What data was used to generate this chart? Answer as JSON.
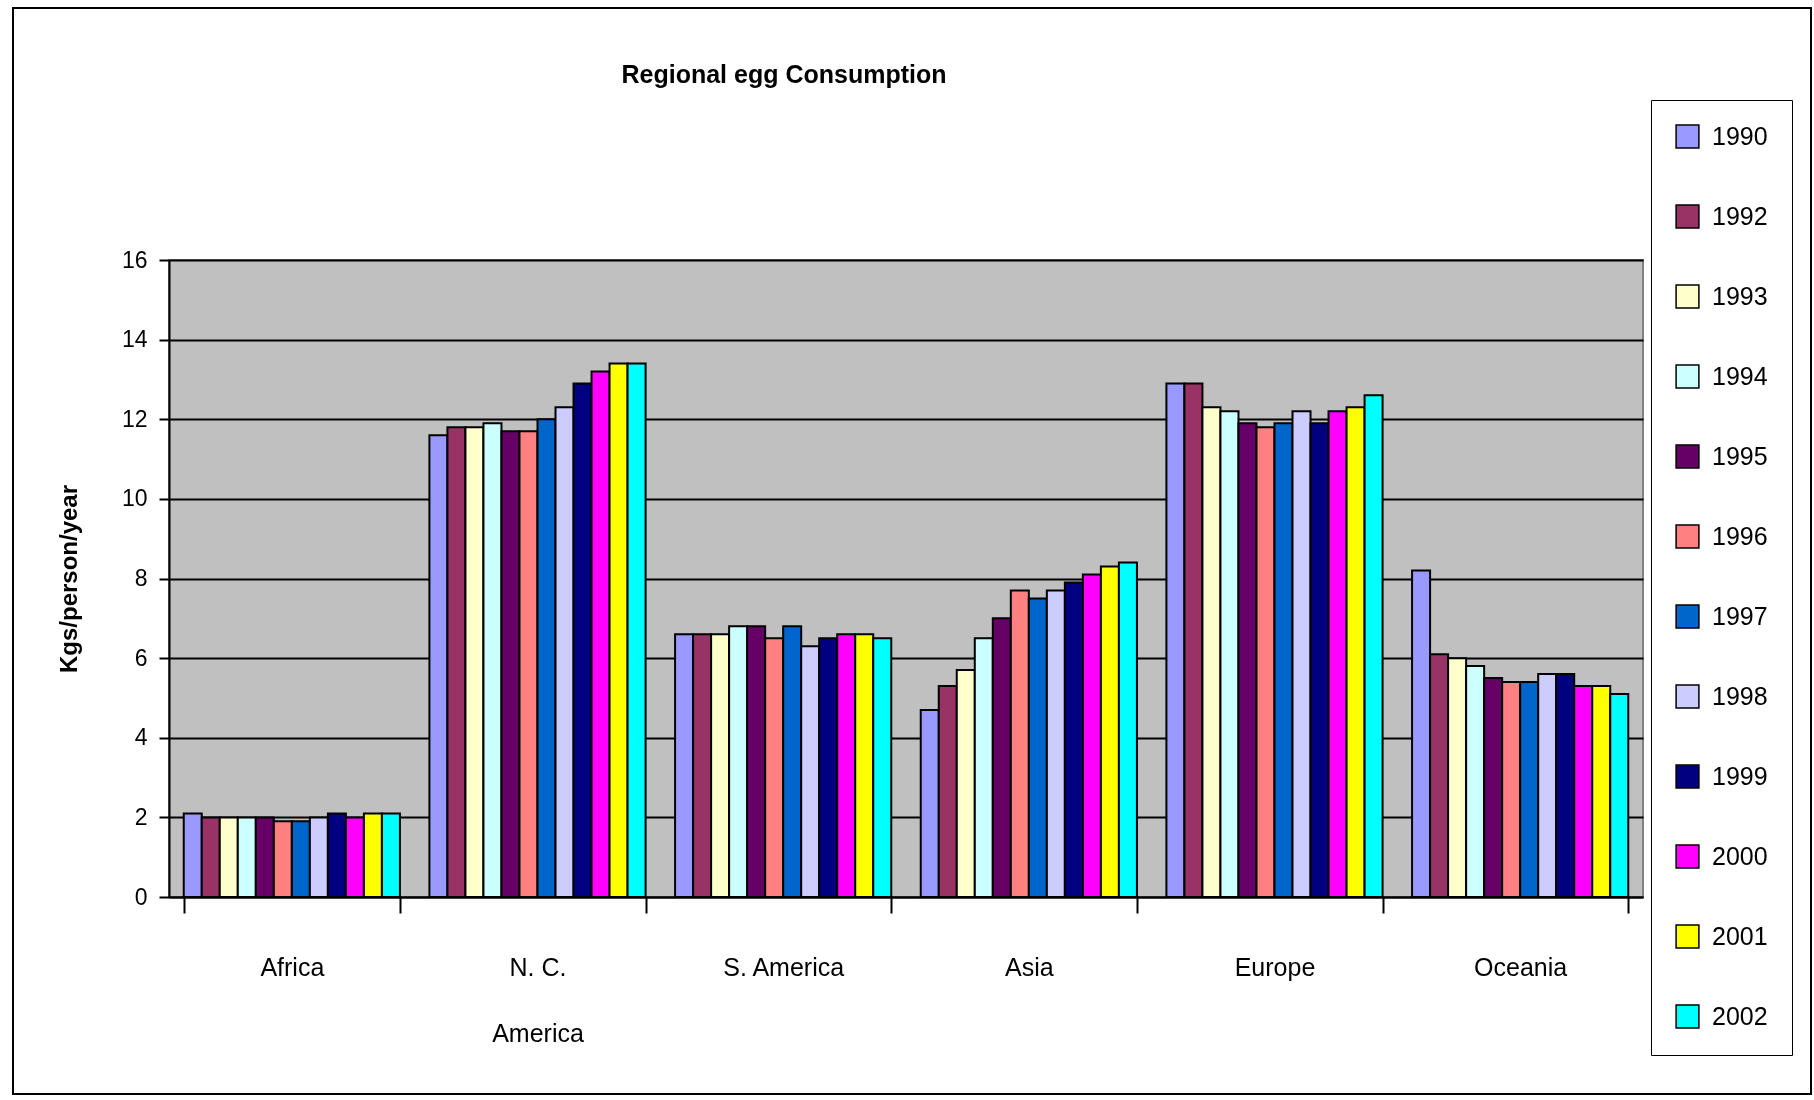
{
  "chart_data": {
    "type": "bar",
    "title": "Regional egg Consumption",
    "ylabel": "Kgs/person/year",
    "categories": [
      "Africa",
      "N. C. America",
      "S. America",
      "Asia",
      "Europe",
      "Oceania"
    ],
    "series": [
      {
        "name": "1990",
        "color": "#9999ff",
        "values": [
          2.1,
          11.6,
          6.6,
          4.7,
          12.9,
          8.2
        ]
      },
      {
        "name": "1992",
        "color": "#993366",
        "values": [
          2.0,
          11.8,
          6.6,
          5.3,
          12.9,
          6.1
        ]
      },
      {
        "name": "1993",
        "color": "#ffffcc",
        "values": [
          2.0,
          11.8,
          6.6,
          5.7,
          12.3,
          6.0
        ]
      },
      {
        "name": "1994",
        "color": "#ccffff",
        "values": [
          2.0,
          11.9,
          6.8,
          6.5,
          12.2,
          5.8
        ]
      },
      {
        "name": "1995",
        "color": "#660066",
        "values": [
          2.0,
          11.7,
          6.8,
          7.0,
          11.9,
          5.5
        ]
      },
      {
        "name": "1996",
        "color": "#ff8080",
        "values": [
          1.9,
          11.7,
          6.5,
          7.7,
          11.8,
          5.4
        ]
      },
      {
        "name": "1997",
        "color": "#0066cc",
        "values": [
          1.9,
          12.0,
          6.8,
          7.5,
          11.9,
          5.4
        ]
      },
      {
        "name": "1998",
        "color": "#ccccff",
        "values": [
          2.0,
          12.3,
          6.3,
          7.7,
          12.2,
          5.6
        ]
      },
      {
        "name": "1999",
        "color": "#000080",
        "values": [
          2.1,
          12.9,
          6.5,
          7.9,
          11.9,
          5.6
        ]
      },
      {
        "name": "2000",
        "color": "#ff00ff",
        "values": [
          2.0,
          13.2,
          6.6,
          8.1,
          12.2,
          5.3
        ]
      },
      {
        "name": "2001",
        "color": "#ffff00",
        "values": [
          2.1,
          13.4,
          6.6,
          8.3,
          12.3,
          5.3
        ]
      },
      {
        "name": "2002",
        "color": "#00ffff",
        "values": [
          2.1,
          13.4,
          6.5,
          8.4,
          12.6,
          5.1
        ]
      }
    ],
    "ylim": [
      0,
      16
    ],
    "yticks": [
      0,
      2,
      4,
      6,
      8,
      10,
      12,
      14,
      16
    ],
    "grid": "y",
    "legend": "right"
  }
}
